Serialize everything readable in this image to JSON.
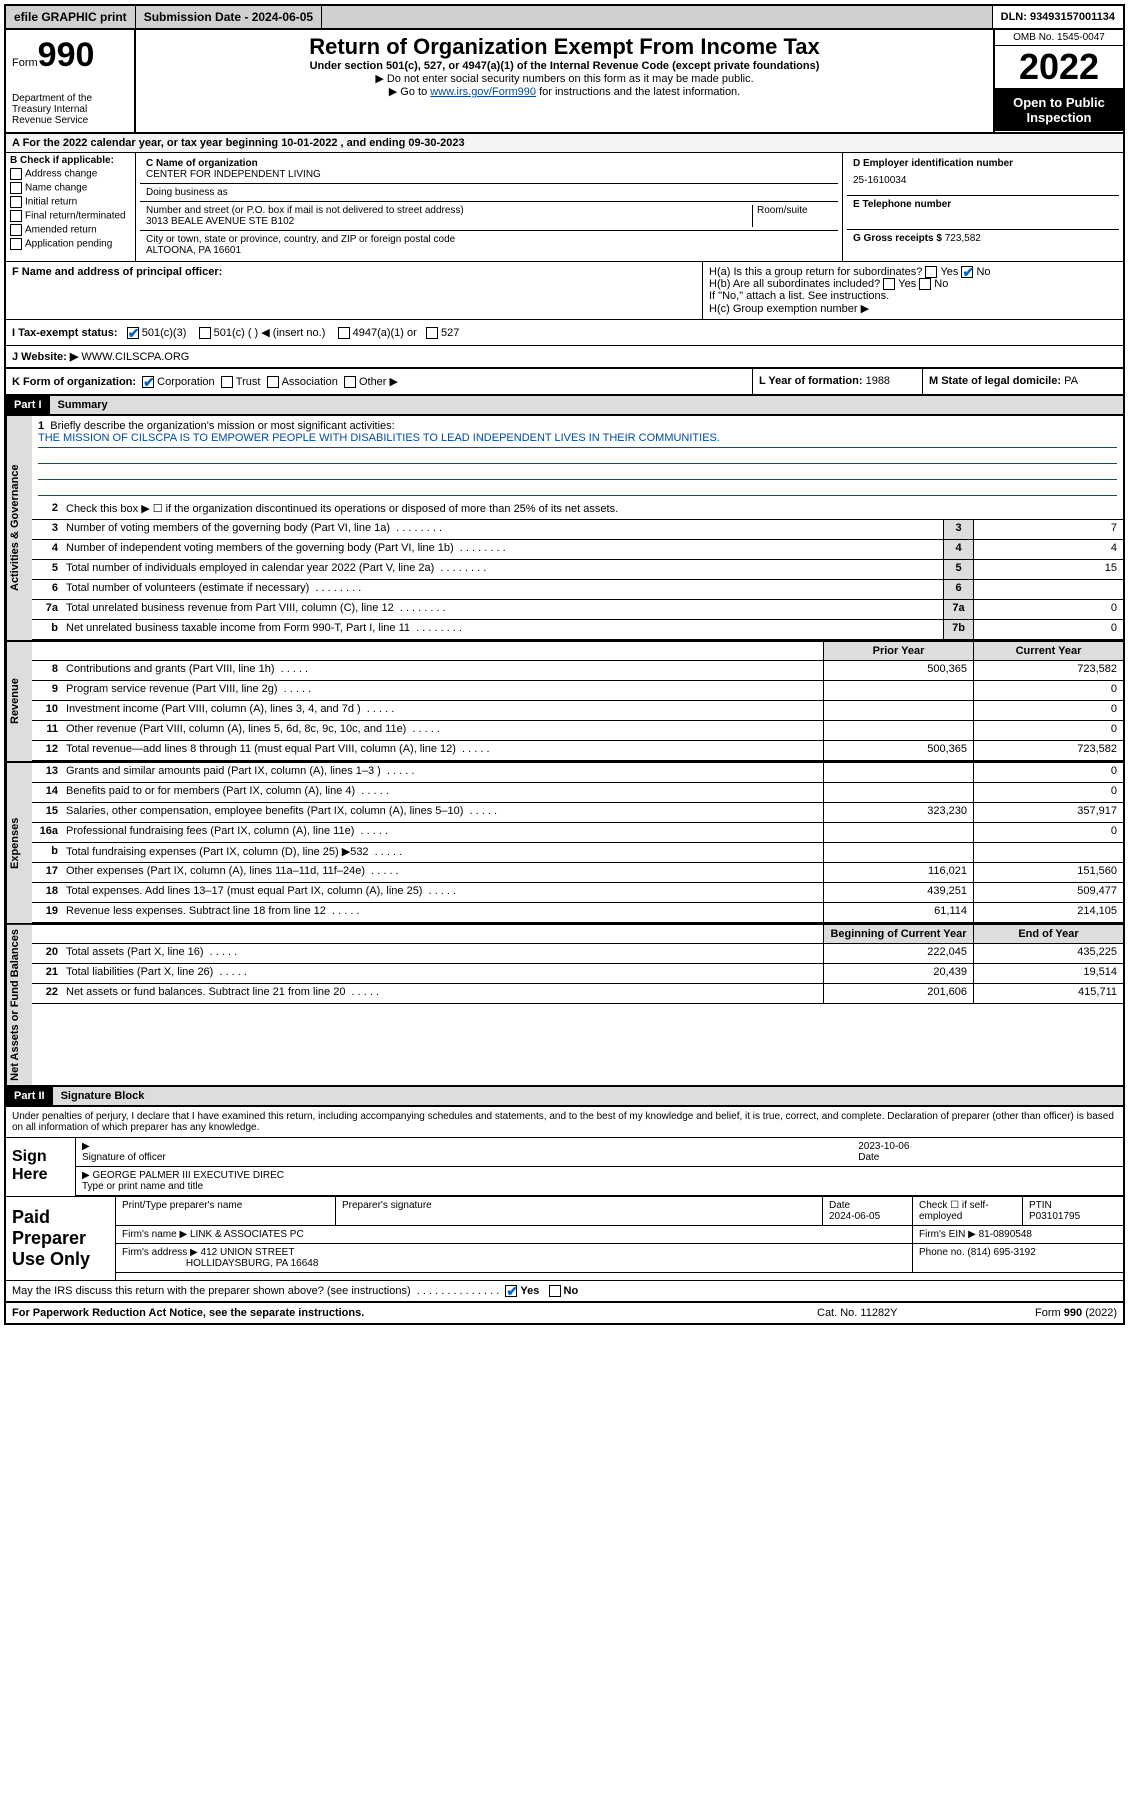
{
  "topbar": {
    "efile": "efile GRAPHIC print",
    "subdate_lbl": "Submission Date - 2024-06-05",
    "dln": "DLN: 93493157001134"
  },
  "header": {
    "form_word": "Form",
    "form_num": "990",
    "dept": "Department of the Treasury\nInternal Revenue Service",
    "title": "Return of Organization Exempt From Income Tax",
    "sub": "Under section 501(c), 527, or 4947(a)(1) of the Internal Revenue Code (except private foundations)",
    "note1": "▶ Do not enter social security numbers on this form as it may be made public.",
    "note2_pre": "▶ Go to ",
    "note2_link": "www.irs.gov/Form990",
    "note2_post": " for instructions and the latest information.",
    "omb": "OMB No. 1545-0047",
    "year": "2022",
    "otp": "Open to Public Inspection"
  },
  "taxyear": "A For the 2022 calendar year, or tax year beginning 10-01-2022   , and ending 09-30-2023",
  "blockB": {
    "hdr": "B Check if applicable:",
    "opts": [
      "Address change",
      "Name change",
      "Initial return",
      "Final return/terminated",
      "Amended return",
      "Application pending"
    ]
  },
  "blockC": {
    "name_lbl": "C Name of organization",
    "name": "CENTER FOR INDEPENDENT LIVING",
    "dba_lbl": "Doing business as",
    "addr_lbl": "Number and street (or P.O. box if mail is not delivered to street address)",
    "room_lbl": "Room/suite",
    "addr": "3013 BEALE AVENUE STE B102",
    "city_lbl": "City or town, state or province, country, and ZIP or foreign postal code",
    "city": "ALTOONA, PA  16601"
  },
  "blockD": {
    "ein_lbl": "D Employer identification number",
    "ein": "25-1610034",
    "tel_lbl": "E Telephone number",
    "gross_lbl": "G Gross receipts $",
    "gross": "723,582"
  },
  "principal": {
    "f_lbl": "F  Name and address of principal officer:",
    "ha": "H(a)  Is this a group return for subordinates?",
    "hb": "H(b)  Are all subordinates included?",
    "hb_note": "If \"No,\" attach a list. See instructions.",
    "hc": "H(c)  Group exemption number ▶",
    "yes": "Yes",
    "no": "No"
  },
  "taxstatus": {
    "i_lbl": "I   Tax-exempt status:",
    "s1": "501(c)(3)",
    "s2": "501(c) (  ) ◀ (insert no.)",
    "s3": "4947(a)(1) or",
    "s4": "527",
    "j_lbl": "J   Website: ▶",
    "j_val": "WWW.CILSCPA.ORG"
  },
  "korg": {
    "k_lbl": "K Form of organization:",
    "k1": "Corporation",
    "k2": "Trust",
    "k3": "Association",
    "k4": "Other ▶",
    "l_lbl": "L Year of formation:",
    "l_val": "1988",
    "m_lbl": "M State of legal domicile:",
    "m_val": "PA"
  },
  "part1": {
    "hdr": "Part I",
    "title": "Summary",
    "side_gov": "Activities & Governance",
    "side_rev": "Revenue",
    "side_exp": "Expenses",
    "side_net": "Net Assets or Fund Balances",
    "l1": "Briefly describe the organization's mission or most significant activities:",
    "mission": "THE MISSION OF CILSCPA IS TO EMPOWER PEOPLE WITH DISABILITIES TO LEAD INDEPENDENT LIVES IN THEIR COMMUNITIES.",
    "l2": "Check this box ▶ ☐  if the organization discontinued its operations or disposed of more than 25% of its net assets.",
    "lines_gov": [
      {
        "n": "3",
        "t": "Number of voting members of the governing body (Part VI, line 1a)",
        "b": "3",
        "v": "7"
      },
      {
        "n": "4",
        "t": "Number of independent voting members of the governing body (Part VI, line 1b)",
        "b": "4",
        "v": "4"
      },
      {
        "n": "5",
        "t": "Total number of individuals employed in calendar year 2022 (Part V, line 2a)",
        "b": "5",
        "v": "15"
      },
      {
        "n": "6",
        "t": "Total number of volunteers (estimate if necessary)",
        "b": "6",
        "v": ""
      },
      {
        "n": "7a",
        "t": "Total unrelated business revenue from Part VIII, column (C), line 12",
        "b": "7a",
        "v": "0"
      },
      {
        "n": "b",
        "t": "Net unrelated business taxable income from Form 990-T, Part I, line 11",
        "b": "7b",
        "v": "0"
      }
    ],
    "col_prior": "Prior Year",
    "col_curr": "Current Year",
    "lines_rev": [
      {
        "n": "8",
        "t": "Contributions and grants (Part VIII, line 1h)",
        "p": "500,365",
        "c": "723,582"
      },
      {
        "n": "9",
        "t": "Program service revenue (Part VIII, line 2g)",
        "p": "",
        "c": "0"
      },
      {
        "n": "10",
        "t": "Investment income (Part VIII, column (A), lines 3, 4, and 7d )",
        "p": "",
        "c": "0"
      },
      {
        "n": "11",
        "t": "Other revenue (Part VIII, column (A), lines 5, 6d, 8c, 9c, 10c, and 11e)",
        "p": "",
        "c": "0"
      },
      {
        "n": "12",
        "t": "Total revenue—add lines 8 through 11 (must equal Part VIII, column (A), line 12)",
        "p": "500,365",
        "c": "723,582"
      }
    ],
    "lines_exp": [
      {
        "n": "13",
        "t": "Grants and similar amounts paid (Part IX, column (A), lines 1–3 )",
        "p": "",
        "c": "0"
      },
      {
        "n": "14",
        "t": "Benefits paid to or for members (Part IX, column (A), line 4)",
        "p": "",
        "c": "0"
      },
      {
        "n": "15",
        "t": "Salaries, other compensation, employee benefits (Part IX, column (A), lines 5–10)",
        "p": "323,230",
        "c": "357,917"
      },
      {
        "n": "16a",
        "t": "Professional fundraising fees (Part IX, column (A), line 11e)",
        "p": "",
        "c": "0"
      },
      {
        "n": "b",
        "t": "Total fundraising expenses (Part IX, column (D), line 25) ▶532",
        "p": "",
        "c": ""
      },
      {
        "n": "17",
        "t": "Other expenses (Part IX, column (A), lines 11a–11d, 11f–24e)",
        "p": "116,021",
        "c": "151,560"
      },
      {
        "n": "18",
        "t": "Total expenses. Add lines 13–17 (must equal Part IX, column (A), line 25)",
        "p": "439,251",
        "c": "509,477"
      },
      {
        "n": "19",
        "t": "Revenue less expenses. Subtract line 18 from line 12",
        "p": "61,114",
        "c": "214,105"
      }
    ],
    "col_beg": "Beginning of Current Year",
    "col_end": "End of Year",
    "lines_net": [
      {
        "n": "20",
        "t": "Total assets (Part X, line 16)",
        "p": "222,045",
        "c": "435,225"
      },
      {
        "n": "21",
        "t": "Total liabilities (Part X, line 26)",
        "p": "20,439",
        "c": "19,514"
      },
      {
        "n": "22",
        "t": "Net assets or fund balances. Subtract line 21 from line 20",
        "p": "201,606",
        "c": "415,711"
      }
    ]
  },
  "part2": {
    "hdr": "Part II",
    "title": "Signature Block",
    "penalty": "Under penalties of perjury, I declare that I have examined this return, including accompanying schedules and statements, and to the best of my knowledge and belief, it is true, correct, and complete. Declaration of preparer (other than officer) is based on all information of which preparer has any knowledge.",
    "sign_here": "Sign Here",
    "sig_lbl": "Signature of officer",
    "date_lbl": "Date",
    "sig_date": "2023-10-06",
    "name_lbl": "Type or print name and title",
    "name": "GEORGE PALMER III EXECUTIVE DIREC",
    "paid_hdr": "Paid Preparer Use Only",
    "prep_name_lbl": "Print/Type preparer's name",
    "prep_sig_lbl": "Preparer's signature",
    "prep_date_lbl": "Date",
    "prep_date": "2024-06-05",
    "prep_check": "Check ☐ if self-employed",
    "ptin_lbl": "PTIN",
    "ptin": "P03101795",
    "firm_name_lbl": "Firm's name    ▶",
    "firm_name": "LINK & ASSOCIATES PC",
    "firm_ein_lbl": "Firm's EIN ▶",
    "firm_ein": "81-0890548",
    "firm_addr_lbl": "Firm's address ▶",
    "firm_addr": "412 UNION STREET",
    "firm_city": "HOLLIDAYSBURG, PA  16648",
    "phone_lbl": "Phone no.",
    "phone": "(814) 695-3192",
    "discuss": "May the IRS discuss this return with the preparer shown above? (see instructions)",
    "discuss_yes": "Yes",
    "discuss_no": "No"
  },
  "footer": {
    "pra": "For Paperwork Reduction Act Notice, see the separate instructions.",
    "cat": "Cat. No. 11282Y",
    "form": "Form 990 (2022)"
  }
}
